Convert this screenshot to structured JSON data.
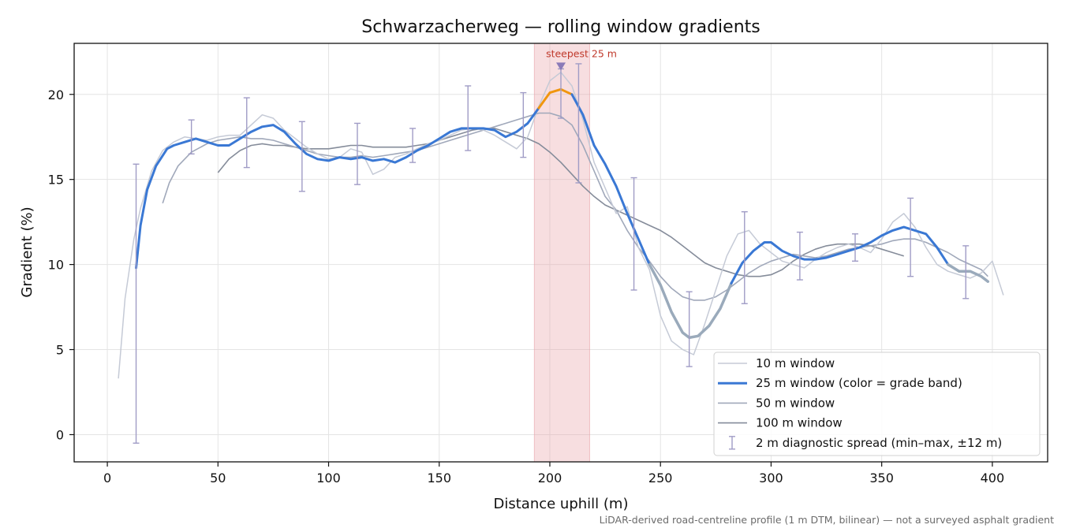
{
  "chart_data": {
    "type": "line",
    "title": "Schwarzacherweg — rolling window gradients",
    "xlabel": "Distance uphill (m)",
    "ylabel": "Gradient (%)",
    "xlim": [
      -15,
      425
    ],
    "ylim": [
      -1.6,
      23
    ],
    "x_ticks": [
      0,
      50,
      100,
      150,
      200,
      250,
      300,
      350,
      400
    ],
    "y_ticks": [
      0,
      5,
      10,
      15,
      20
    ],
    "grid": true,
    "legend_position": "lower-right",
    "colors": {
      "w10": "#c5cad6",
      "w25": "#3a78d4",
      "w25_low": "#9aaabb",
      "w25_peak": "#f0960e",
      "w50": "#a0a8ba",
      "w100": "#858c9a",
      "errorbar": "#a09cc6",
      "highlight": "#e8a0a6",
      "marker": "#8a7ab8"
    },
    "highlight_band": {
      "x0": 193,
      "x1": 218
    },
    "annotation": {
      "text": "steepest 25 m",
      "x": 205,
      "y": 22.2,
      "marker_y": 21.5
    },
    "footnote": "LiDAR-derived road-centreline profile (1 m DTM, bilinear) — not a surveyed asphalt gradient",
    "legend": [
      {
        "key": "w10",
        "label": "10 m window"
      },
      {
        "key": "w25",
        "label": "25 m window (color = grade band)"
      },
      {
        "key": "w50",
        "label": "50 m window"
      },
      {
        "key": "w100",
        "label": "100 m window"
      },
      {
        "key": "errorbar",
        "label": "2 m diagnostic spread (min–max, ±12 m)"
      }
    ],
    "series": [
      {
        "name": "10 m window",
        "x": [
          5,
          8,
          12,
          15,
          20,
          25,
          30,
          35,
          40,
          45,
          50,
          55,
          60,
          65,
          70,
          75,
          80,
          85,
          90,
          95,
          100,
          105,
          110,
          115,
          120,
          125,
          130,
          135,
          140,
          145,
          150,
          155,
          160,
          165,
          170,
          175,
          180,
          185,
          190,
          195,
          200,
          205,
          210,
          215,
          220,
          225,
          230,
          235,
          240,
          245,
          250,
          255,
          260,
          265,
          270,
          275,
          280,
          285,
          290,
          295,
          300,
          305,
          310,
          315,
          320,
          325,
          330,
          335,
          340,
          345,
          350,
          355,
          360,
          365,
          370,
          375,
          380,
          385,
          390,
          395,
          400,
          405
        ],
        "y": [
          3.3,
          8,
          11.5,
          13.3,
          15.5,
          16.7,
          17.2,
          17.5,
          17.4,
          17.3,
          17.5,
          17.6,
          17.6,
          18.2,
          18.8,
          18.6,
          17.9,
          17.4,
          16.9,
          16.5,
          16.2,
          16.3,
          16.8,
          16.6,
          15.3,
          15.6,
          16.3,
          16.5,
          16.8,
          17.1,
          17.3,
          17.6,
          17.9,
          18.0,
          17.9,
          17.6,
          17.2,
          16.8,
          17.5,
          19.3,
          20.8,
          21.3,
          20.5,
          18.5,
          16.0,
          14.5,
          13.0,
          13.4,
          11.0,
          9.7,
          7.0,
          5.5,
          5.0,
          4.7,
          6.5,
          8.5,
          10.5,
          11.8,
          12.0,
          11.2,
          10.7,
          10.2,
          10.0,
          9.8,
          10.3,
          10.7,
          11.0,
          11.2,
          11.0,
          10.7,
          11.5,
          12.5,
          13.0,
          12.2,
          11.0,
          10.0,
          9.6,
          9.4,
          9.2,
          9.5,
          10.2,
          8.2
        ]
      },
      {
        "name": "25 m window (color = grade band)",
        "x": [
          13,
          15,
          18,
          22,
          27,
          30,
          35,
          40,
          45,
          50,
          55,
          60,
          65,
          70,
          75,
          80,
          85,
          90,
          95,
          100,
          105,
          110,
          115,
          120,
          125,
          130,
          135,
          140,
          145,
          150,
          155,
          160,
          165,
          170,
          175,
          180,
          185,
          190,
          195,
          200,
          205,
          210,
          215,
          220,
          225,
          230,
          235,
          240,
          245,
          250,
          255,
          260,
          263,
          267,
          272,
          277,
          282,
          287,
          292,
          297,
          300,
          305,
          310,
          315,
          320,
          325,
          330,
          335,
          340,
          345,
          350,
          355,
          360,
          365,
          370,
          375,
          380,
          385,
          390,
          395,
          398
        ],
        "y": [
          9.8,
          12.3,
          14.4,
          15.8,
          16.8,
          17.0,
          17.2,
          17.4,
          17.2,
          17.0,
          17.0,
          17.4,
          17.8,
          18.1,
          18.2,
          17.8,
          17.1,
          16.5,
          16.2,
          16.1,
          16.3,
          16.2,
          16.3,
          16.1,
          16.2,
          16.0,
          16.3,
          16.7,
          17.0,
          17.4,
          17.8,
          18.0,
          18.0,
          18.0,
          17.9,
          17.5,
          17.8,
          18.3,
          19.2,
          20.1,
          20.3,
          20.0,
          18.8,
          17.0,
          15.9,
          14.6,
          13.0,
          11.5,
          10.0,
          8.8,
          7.2,
          6.0,
          5.7,
          5.8,
          6.4,
          7.4,
          8.9,
          10.1,
          10.8,
          11.3,
          11.3,
          10.8,
          10.5,
          10.3,
          10.3,
          10.4,
          10.6,
          10.8,
          11.0,
          11.3,
          11.7,
          12.0,
          12.2,
          12.0,
          11.8,
          11.0,
          10.0,
          9.6,
          9.6,
          9.3,
          9.0
        ]
      },
      {
        "name": "50 m window",
        "x": [
          25,
          28,
          32,
          38,
          45,
          50,
          55,
          60,
          65,
          70,
          75,
          80,
          85,
          90,
          95,
          100,
          105,
          110,
          115,
          120,
          125,
          130,
          135,
          140,
          145,
          150,
          155,
          160,
          165,
          170,
          175,
          180,
          185,
          190,
          195,
          200,
          205,
          210,
          215,
          220,
          225,
          230,
          235,
          240,
          245,
          250,
          255,
          260,
          265,
          270,
          275,
          280,
          285,
          290,
          295,
          300,
          305,
          310,
          315,
          320,
          325,
          330,
          335,
          340,
          345,
          350,
          355,
          360,
          365,
          370,
          375,
          380,
          385,
          390,
          395,
          398
        ],
        "y": [
          13.6,
          14.8,
          15.8,
          16.6,
          17.1,
          17.3,
          17.4,
          17.5,
          17.4,
          17.4,
          17.3,
          17.1,
          16.9,
          16.7,
          16.5,
          16.4,
          16.3,
          16.3,
          16.4,
          16.3,
          16.4,
          16.5,
          16.6,
          16.7,
          16.9,
          17.1,
          17.3,
          17.5,
          17.7,
          17.9,
          18.1,
          18.3,
          18.5,
          18.7,
          18.9,
          18.9,
          18.7,
          18.2,
          17.0,
          15.5,
          14.0,
          13.2,
          12.0,
          11.0,
          10.2,
          9.3,
          8.6,
          8.1,
          7.9,
          7.9,
          8.1,
          8.5,
          9.0,
          9.5,
          9.9,
          10.2,
          10.4,
          10.6,
          10.5,
          10.4,
          10.5,
          10.7,
          10.9,
          11.0,
          11.1,
          11.2,
          11.4,
          11.5,
          11.5,
          11.3,
          11.0,
          10.7,
          10.3,
          10.0,
          9.7,
          9.3
        ]
      },
      {
        "name": "100 m window",
        "x": [
          50,
          55,
          60,
          65,
          70,
          75,
          80,
          85,
          90,
          95,
          100,
          105,
          110,
          115,
          120,
          125,
          130,
          135,
          140,
          145,
          150,
          155,
          160,
          165,
          170,
          175,
          180,
          185,
          190,
          195,
          200,
          205,
          210,
          215,
          220,
          225,
          230,
          235,
          240,
          245,
          250,
          255,
          260,
          265,
          270,
          275,
          280,
          285,
          290,
          295,
          300,
          305,
          310,
          315,
          320,
          325,
          330,
          335,
          340,
          345,
          350,
          355,
          360
        ],
        "y": [
          15.4,
          16.2,
          16.7,
          17.0,
          17.1,
          17.0,
          17.0,
          16.9,
          16.8,
          16.8,
          16.8,
          16.9,
          17.0,
          17.0,
          16.9,
          16.9,
          16.9,
          16.9,
          17.0,
          17.1,
          17.3,
          17.5,
          17.7,
          17.9,
          18.0,
          18.0,
          17.8,
          17.6,
          17.4,
          17.1,
          16.6,
          16.0,
          15.3,
          14.6,
          14.0,
          13.5,
          13.2,
          12.9,
          12.6,
          12.3,
          12.0,
          11.6,
          11.1,
          10.6,
          10.1,
          9.8,
          9.6,
          9.4,
          9.3,
          9.3,
          9.4,
          9.7,
          10.2,
          10.6,
          10.9,
          11.1,
          11.2,
          11.2,
          11.2,
          11.1,
          10.9,
          10.7,
          10.5
        ]
      }
    ],
    "error_bars": [
      {
        "x": 13,
        "low": -0.5,
        "high": 15.9
      },
      {
        "x": 38,
        "low": 16.5,
        "high": 18.5
      },
      {
        "x": 63,
        "low": 15.7,
        "high": 19.8
      },
      {
        "x": 88,
        "low": 14.3,
        "high": 18.4
      },
      {
        "x": 113,
        "low": 14.7,
        "high": 18.3
      },
      {
        "x": 138,
        "low": 16.0,
        "high": 18.0
      },
      {
        "x": 163,
        "low": 16.7,
        "high": 20.5
      },
      {
        "x": 188,
        "low": 16.3,
        "high": 20.1
      },
      {
        "x": 205,
        "low": 18.6,
        "high": 21.5
      },
      {
        "x": 213,
        "low": 14.8,
        "high": 21.8
      },
      {
        "x": 238,
        "low": 8.5,
        "high": 15.1
      },
      {
        "x": 263,
        "low": 4.0,
        "high": 8.4
      },
      {
        "x": 288,
        "low": 7.7,
        "high": 13.1
      },
      {
        "x": 313,
        "low": 9.1,
        "high": 11.9
      },
      {
        "x": 338,
        "low": 10.2,
        "high": 11.8
      },
      {
        "x": 363,
        "low": 9.3,
        "high": 13.9
      },
      {
        "x": 388,
        "low": 8.0,
        "high": 11.1
      }
    ]
  }
}
